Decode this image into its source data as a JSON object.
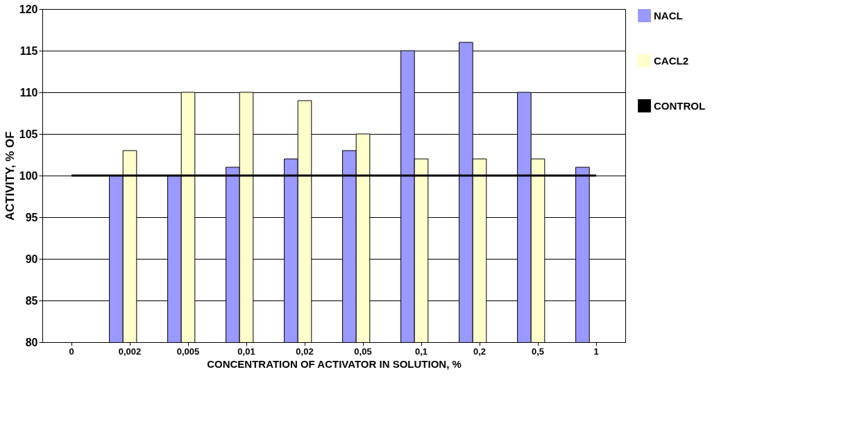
{
  "chart_data": {
    "type": "bar",
    "xlabel": "CONCENTRATION OF ACTIVATOR IN SOLUTION, %",
    "ylabel": "ACTIVITY, % OF",
    "categories": [
      "0",
      "0,002",
      "0,005",
      "0,01",
      "0,02",
      "0,05",
      "0,1",
      "0,2",
      "0,5",
      "1"
    ],
    "series": [
      {
        "name": "NACL",
        "color": "#9999ff",
        "values": [
          null,
          100,
          100,
          101,
          102,
          103,
          115,
          116,
          110,
          101
        ]
      },
      {
        "name": "CACL2",
        "color": "#ffffcc",
        "values": [
          null,
          103,
          110,
          110,
          109,
          105,
          102,
          102,
          102,
          null
        ]
      },
      {
        "name": "CONTROL",
        "type": "line",
        "color": "#000000",
        "values": [
          100,
          100,
          100,
          100,
          100,
          100,
          100,
          100,
          100,
          100
        ]
      }
    ],
    "ylim": [
      80,
      120
    ],
    "yticks": [
      80,
      85,
      90,
      95,
      100,
      105,
      110,
      115,
      120
    ],
    "grid": "y",
    "legend": "right"
  }
}
